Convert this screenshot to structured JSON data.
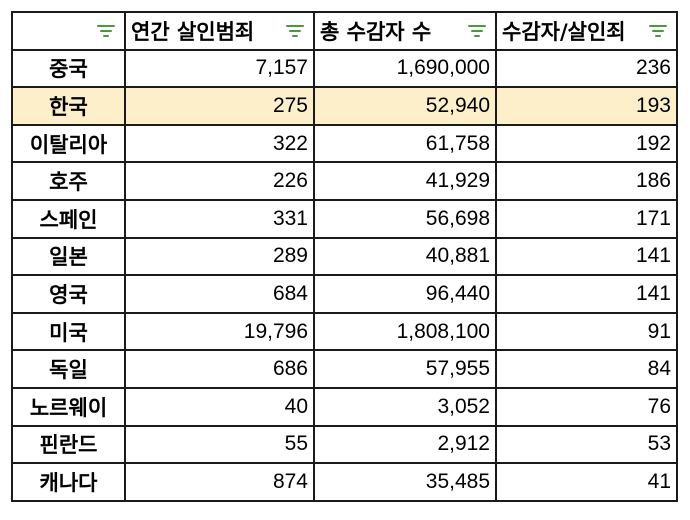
{
  "header": {
    "col1": "",
    "col2": "연간 살인범죄",
    "col3": "총 수감자 수",
    "col4": "수감자/살인죄"
  },
  "filter_icon_color": "#4a9a3c",
  "highlight_color": "#fcefc9",
  "rows": [
    {
      "country": "중국",
      "murders": "7,157",
      "prisoners": "1,690,000",
      "ratio": "236",
      "highlight": false
    },
    {
      "country": "한국",
      "murders": "275",
      "prisoners": "52,940",
      "ratio": "193",
      "highlight": true
    },
    {
      "country": "이탈리아",
      "murders": "322",
      "prisoners": "61,758",
      "ratio": "192",
      "highlight": false
    },
    {
      "country": "호주",
      "murders": "226",
      "prisoners": "41,929",
      "ratio": "186",
      "highlight": false
    },
    {
      "country": "스페인",
      "murders": "331",
      "prisoners": "56,698",
      "ratio": "171",
      "highlight": false
    },
    {
      "country": "일본",
      "murders": "289",
      "prisoners": "40,881",
      "ratio": "141",
      "highlight": false
    },
    {
      "country": "영국",
      "murders": "684",
      "prisoners": "96,440",
      "ratio": "141",
      "highlight": false
    },
    {
      "country": "미국",
      "murders": "19,796",
      "prisoners": "1,808,100",
      "ratio": "91",
      "highlight": false
    },
    {
      "country": "독일",
      "murders": "686",
      "prisoners": "57,955",
      "ratio": "84",
      "highlight": false
    },
    {
      "country": "노르웨이",
      "murders": "40",
      "prisoners": "3,052",
      "ratio": "76",
      "highlight": false
    },
    {
      "country": "핀란드",
      "murders": "55",
      "prisoners": "2,912",
      "ratio": "53",
      "highlight": false
    },
    {
      "country": "캐나다",
      "murders": "874",
      "prisoners": "35,485",
      "ratio": "41",
      "highlight": false
    }
  ]
}
